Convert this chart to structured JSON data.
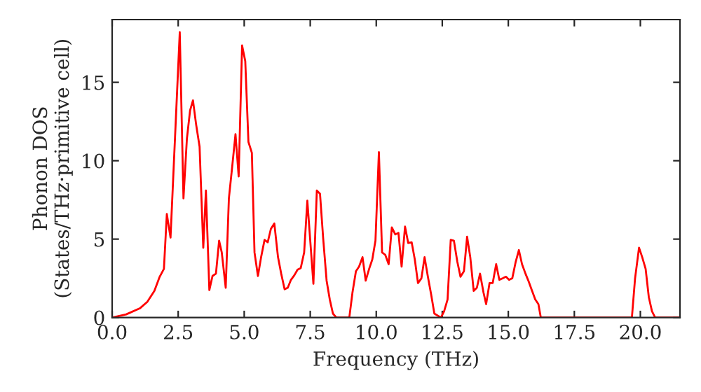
{
  "chart_data": {
    "type": "line",
    "xlabel": "Frequency (THz)",
    "ylabel": "Phonon DOS\n(States/THz·primitive cell)",
    "xlim": [
      0,
      21.5
    ],
    "ylim": [
      0,
      19
    ],
    "xticks": [
      {
        "value": 0,
        "label": "0.0"
      },
      {
        "value": 2.5,
        "label": "2.5"
      },
      {
        "value": 5,
        "label": "5.0"
      },
      {
        "value": 7.5,
        "label": "7.5"
      },
      {
        "value": 10,
        "label": "10.0"
      },
      {
        "value": 12.5,
        "label": "12.5"
      },
      {
        "value": 15,
        "label": "15.0"
      },
      {
        "value": 17.5,
        "label": "17.5"
      },
      {
        "value": 20,
        "label": "20.0"
      }
    ],
    "yticks": [
      0,
      5,
      10,
      15
    ],
    "grid": false,
    "legend": false,
    "marker": "none",
    "line_style": "solid",
    "series": [
      {
        "color": "#ff0000",
        "x": [
          0,
          0.53,
          1.06,
          1.33,
          1.6,
          1.8,
          1.96,
          2.07,
          2.21,
          2.56,
          2.7,
          2.83,
          2.95,
          3.06,
          3.18,
          3.31,
          3.45,
          3.55,
          3.68,
          3.8,
          3.93,
          4.05,
          4.15,
          4.3,
          4.42,
          4.55,
          4.67,
          4.79,
          4.92,
          5.04,
          5.16,
          5.29,
          5.39,
          5.52,
          5.64,
          5.77,
          5.89,
          6.01,
          6.14,
          6.28,
          6.4,
          6.53,
          6.65,
          6.77,
          6.9,
          7.02,
          7.14,
          7.27,
          7.39,
          7.62,
          7.75,
          7.87,
          7.99,
          8.12,
          8.24,
          8.36,
          8.49,
          8.98,
          9.1,
          9.23,
          9.35,
          9.48,
          9.6,
          9.73,
          9.85,
          9.97,
          10.1,
          10.22,
          10.34,
          10.47,
          10.59,
          10.72,
          10.84,
          10.96,
          11.09,
          11.21,
          11.34,
          11.46,
          11.58,
          11.71,
          11.83,
          11.95,
          12.08,
          12.2,
          12.45,
          12.57,
          12.7,
          12.82,
          12.94,
          13.07,
          13.19,
          13.32,
          13.44,
          13.56,
          13.69,
          13.81,
          13.93,
          14.06,
          14.16,
          14.29,
          14.41,
          14.54,
          14.66,
          14.79,
          14.91,
          15.03,
          15.15,
          15.28,
          15.4,
          15.52,
          15.65,
          15.77,
          15.9,
          16.02,
          16.14,
          16.23,
          19.68,
          19.8,
          19.95,
          20.07,
          20.2,
          20.32,
          20.44,
          20.56,
          21.48
        ],
        "values": [
          0,
          0.2,
          0.6,
          1.0,
          1.7,
          2.6,
          3.1,
          6.6,
          5.1,
          18.2,
          7.6,
          11.4,
          13.2,
          13.85,
          12.3,
          10.9,
          4.45,
          8.1,
          1.75,
          2.65,
          2.8,
          4.9,
          4.15,
          1.9,
          7.6,
          9.7,
          11.7,
          9.0,
          17.35,
          16.35,
          11.2,
          10.5,
          4.15,
          2.65,
          3.85,
          4.95,
          4.8,
          5.65,
          6.0,
          3.85,
          2.8,
          1.8,
          1.9,
          2.4,
          2.7,
          3.05,
          3.15,
          4.15,
          7.45,
          2.15,
          8.1,
          7.9,
          5.05,
          2.35,
          1.15,
          0.25,
          0,
          0,
          1.6,
          2.95,
          3.25,
          3.85,
          2.35,
          3.1,
          3.7,
          4.9,
          10.55,
          4.15,
          4.0,
          3.4,
          5.75,
          5.3,
          5.4,
          3.25,
          5.8,
          4.75,
          4.8,
          3.7,
          2.2,
          2.5,
          3.85,
          2.65,
          1.45,
          0.25,
          0,
          0.4,
          1.15,
          4.95,
          4.9,
          3.55,
          2.6,
          2.95,
          5.15,
          3.85,
          1.7,
          1.9,
          2.8,
          1.6,
          0.85,
          2.2,
          2.2,
          3.4,
          2.4,
          2.5,
          2.6,
          2.4,
          2.5,
          3.55,
          4.3,
          3.4,
          2.8,
          2.3,
          1.7,
          1.15,
          0.85,
          0,
          0,
          2.5,
          4.45,
          3.85,
          3.1,
          1.3,
          0.4,
          0,
          0
        ]
      }
    ]
  }
}
